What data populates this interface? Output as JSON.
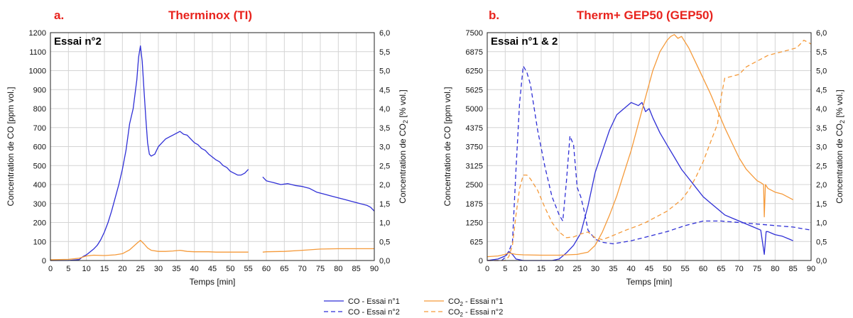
{
  "colors": {
    "co": "#2f2fd6",
    "co2": "#f59a3a",
    "title": "#e8231d"
  },
  "legend": {
    "co1": "CO - Essai n°1",
    "co2": "CO - Essai n°2",
    "co2_1_pre": "CO",
    "co2_1_sub": "2",
    "co2_1_post": " - Essai n°1",
    "co2_2_pre": "CO",
    "co2_2_sub": "2",
    "co2_2_post": " - Essai n°2"
  },
  "chart_data": [
    {
      "type": "line",
      "letter": "a.",
      "title": "Therminox (TI)",
      "annotation": "Essai n°2",
      "xlabel": "Temps [min]",
      "ylabel_left": "Concentration de CO [ppm vol.]",
      "ylabel_right_pre": "Concentration de CO",
      "ylabel_right_sub": "2",
      "ylabel_right_post": " [% vol.]",
      "xlim": [
        0,
        90
      ],
      "ylim_left": [
        0,
        1200
      ],
      "ylim_right": [
        0,
        6
      ],
      "x_ticks": [
        "0",
        "5",
        "10",
        "15",
        "20",
        "25",
        "30",
        "35",
        "40",
        "45",
        "50",
        "55",
        "60",
        "65",
        "70",
        "75",
        "80",
        "85",
        "90"
      ],
      "y_ticks_left": [
        "0",
        "100",
        "200",
        "300",
        "400",
        "500",
        "600",
        "700",
        "800",
        "900",
        "1000",
        "1100",
        "1200"
      ],
      "y_ticks_right": [
        "0,0",
        "0,5",
        "1,0",
        "1,5",
        "2,0",
        "2,5",
        "3,0",
        "3,5",
        "4,0",
        "4,5",
        "5,0",
        "5,5",
        "6,0"
      ],
      "grid": true,
      "series": [
        {
          "name": "CO - Essai n°2",
          "axis": "left",
          "color": "#2f2fd6",
          "style": "solid",
          "segments": [
            {
              "x": [
                0,
                5,
                8,
                9,
                10,
                11,
                12,
                13,
                14,
                15,
                16,
                17,
                18,
                19,
                20,
                21,
                22,
                23,
                24,
                24.5,
                25,
                25.5,
                26,
                26.5,
                27,
                27.5,
                28,
                29,
                30,
                31,
                32,
                33,
                34,
                35,
                36,
                37,
                38,
                39,
                40,
                41,
                42,
                43,
                44,
                45,
                46,
                47,
                48,
                49,
                50,
                51,
                52,
                53,
                54,
                55
              ],
              "y": [
                0,
                0,
                5,
                20,
                30,
                45,
                60,
                80,
                110,
                150,
                200,
                260,
                330,
                400,
                480,
                580,
                720,
                800,
                950,
                1070,
                1130,
                1050,
                900,
                750,
                620,
                560,
                550,
                560,
                600,
                620,
                640,
                650,
                660,
                670,
                680,
                665,
                660,
                640,
                620,
                610,
                590,
                580,
                560,
                545,
                530,
                520,
                500,
                490,
                470,
                460,
                450,
                450,
                460,
                480
              ]
            },
            {
              "x": [
                59,
                60,
                62,
                64,
                66,
                68,
                70,
                72,
                74,
                76,
                78,
                80,
                82,
                84,
                86,
                88,
                89,
                90
              ],
              "y": [
                440,
                420,
                410,
                400,
                405,
                395,
                390,
                380,
                360,
                350,
                340,
                330,
                320,
                310,
                300,
                290,
                280,
                260
              ]
            }
          ]
        },
        {
          "name": "CO2 - Essai n°2",
          "axis": "right",
          "color": "#f59a3a",
          "style": "solid",
          "segments": [
            {
              "x": [
                0,
                5,
                8,
                10,
                12,
                15,
                18,
                20,
                22,
                24,
                25,
                26,
                27,
                28,
                30,
                32,
                34,
                36,
                38,
                40,
                42,
                44,
                46,
                48,
                50,
                52,
                54,
                55
              ],
              "y": [
                0.02,
                0.03,
                0.06,
                0.12,
                0.14,
                0.13,
                0.15,
                0.18,
                0.28,
                0.45,
                0.53,
                0.44,
                0.33,
                0.27,
                0.24,
                0.24,
                0.25,
                0.27,
                0.24,
                0.23,
                0.23,
                0.23,
                0.22,
                0.22,
                0.22,
                0.22,
                0.22,
                0.22
              ]
            },
            {
              "x": [
                59,
                60,
                65,
                70,
                75,
                80,
                85,
                90
              ],
              "y": [
                0.22,
                0.23,
                0.24,
                0.27,
                0.3,
                0.31,
                0.31,
                0.31
              ]
            }
          ]
        }
      ]
    },
    {
      "type": "line",
      "letter": "b.",
      "title": "Therm+ GEP50 (GEP50)",
      "annotation": "Essai n°1 & 2",
      "xlabel": "Temps [min]",
      "ylabel_left": "Concentration de CO [ppm vol.]",
      "ylabel_right_pre": "Concentration de CO",
      "ylabel_right_sub": "2",
      "ylabel_right_post": " [% vol.]",
      "xlim": [
        0,
        90
      ],
      "ylim_left": [
        0,
        7500
      ],
      "ylim_right": [
        0,
        6
      ],
      "x_ticks": [
        "0",
        "5",
        "10",
        "15",
        "20",
        "25",
        "30",
        "35",
        "40",
        "45",
        "50",
        "55",
        "60",
        "65",
        "70",
        "75",
        "80",
        "85",
        "90"
      ],
      "y_ticks_left": [
        "0",
        "625",
        "1250",
        "1875",
        "2500",
        "3125",
        "3750",
        "4375",
        "5000",
        "5625",
        "6250",
        "6875",
        "7500"
      ],
      "y_ticks_right": [
        "0,0",
        "0,5",
        "1,0",
        "1,5",
        "2,0",
        "2,5",
        "3,0",
        "3,5",
        "4,0",
        "4,5",
        "5,0",
        "5,5",
        "6,0"
      ],
      "grid": true,
      "series": [
        {
          "name": "CO - Essai n°1",
          "axis": "left",
          "color": "#2f2fd6",
          "style": "solid",
          "segments": [
            {
              "x": [
                0,
                3,
                5,
                6,
                7,
                8,
                10,
                12,
                15,
                18,
                20,
                22,
                24,
                26,
                28,
                30,
                32,
                34,
                36,
                38,
                40,
                42,
                43,
                44,
                45,
                46,
                48,
                50,
                52,
                54,
                56,
                58,
                60,
                62,
                64,
                66,
                68,
                70,
                72,
                74,
                76,
                77,
                77.5,
                78,
                79,
                80,
                82,
                84,
                85
              ],
              "y": [
                0,
                50,
                150,
                300,
                200,
                50,
                0,
                0,
                0,
                0,
                50,
                250,
                500,
                900,
                1800,
                2900,
                3600,
                4300,
                4800,
                5000,
                5200,
                5100,
                5200,
                4900,
                5000,
                4700,
                4200,
                3800,
                3400,
                3000,
                2700,
                2400,
                2100,
                1900,
                1700,
                1500,
                1400,
                1300,
                1200,
                1100,
                1000,
                200,
                950,
                950,
                900,
                850,
                800,
                700,
                650
              ]
            }
          ]
        },
        {
          "name": "CO - Essai n°2",
          "axis": "left",
          "color": "#2f2fd6",
          "style": "dashed",
          "segments": [
            {
              "x": [
                0,
                4,
                5,
                6,
                7,
                8,
                9,
                10,
                11,
                12,
                14,
                16,
                18,
                20,
                21,
                22,
                23,
                24,
                25,
                26,
                27,
                28,
                30,
                32,
                35,
                40,
                45,
                50,
                55,
                60,
                65,
                70,
                75,
                80,
                85,
                90
              ],
              "y": [
                0,
                0,
                100,
                300,
                600,
                3000,
                5200,
                6400,
                6200,
                5800,
                4300,
                3100,
                2100,
                1500,
                1300,
                2600,
                4100,
                3800,
                2400,
                2100,
                1600,
                1000,
                700,
                600,
                550,
                650,
                800,
                950,
                1150,
                1300,
                1300,
                1250,
                1200,
                1150,
                1100,
                1000
              ]
            }
          ]
        },
        {
          "name": "CO2 - Essai n°1",
          "axis": "right",
          "color": "#f59a3a",
          "style": "solid",
          "segments": [
            {
              "x": [
                0,
                3,
                5,
                6,
                7,
                8,
                10,
                15,
                20,
                25,
                28,
                30,
                32,
                34,
                36,
                38,
                40,
                42,
                44,
                46,
                48,
                50,
                51,
                52,
                53,
                54,
                56,
                58,
                60,
                62,
                64,
                66,
                68,
                70,
                72,
                74,
                75,
                76,
                76.8,
                77,
                77.3,
                78,
                80,
                82,
                85
              ],
              "y": [
                0.1,
                0.12,
                0.16,
                0.2,
                0.18,
                0.16,
                0.15,
                0.14,
                0.14,
                0.16,
                0.22,
                0.4,
                0.75,
                1.2,
                1.7,
                2.3,
                2.9,
                3.6,
                4.3,
                5.0,
                5.5,
                5.8,
                5.9,
                5.95,
                5.85,
                5.9,
                5.6,
                5.2,
                4.8,
                4.4,
                3.95,
                3.5,
                3.1,
                2.7,
                2.4,
                2.2,
                2.1,
                2.05,
                2.0,
                1.15,
                2.0,
                1.9,
                1.8,
                1.75,
                1.6
              ]
            }
          ]
        },
        {
          "name": "CO2 - Essai n°2",
          "axis": "right",
          "color": "#f59a3a",
          "style": "dashed",
          "segments": [
            {
              "x": [
                0,
                5,
                6,
                7,
                8,
                9,
                10,
                11,
                12,
                14,
                16,
                18,
                20,
                22,
                24,
                26,
                28,
                30,
                32,
                34,
                36,
                38,
                40,
                42,
                44,
                46,
                48,
                50,
                52,
                54,
                56,
                58,
                60,
                62,
                64,
                65,
                66,
                68,
                70,
                72,
                74,
                76,
                78,
                80,
                82,
                84,
                86,
                88,
                90
              ],
              "y": [
                0.0,
                0.0,
                0.1,
                0.4,
                1.2,
                1.9,
                2.25,
                2.25,
                2.15,
                1.85,
                1.4,
                1.0,
                0.75,
                0.6,
                0.62,
                0.7,
                0.75,
                0.6,
                0.55,
                0.62,
                0.7,
                0.78,
                0.85,
                0.92,
                1.0,
                1.1,
                1.2,
                1.3,
                1.45,
                1.6,
                1.85,
                2.2,
                2.6,
                3.1,
                3.6,
                4.3,
                4.8,
                4.85,
                4.9,
                5.1,
                5.2,
                5.3,
                5.4,
                5.45,
                5.5,
                5.55,
                5.6,
                5.8,
                5.7
              ]
            }
          ]
        }
      ]
    }
  ]
}
